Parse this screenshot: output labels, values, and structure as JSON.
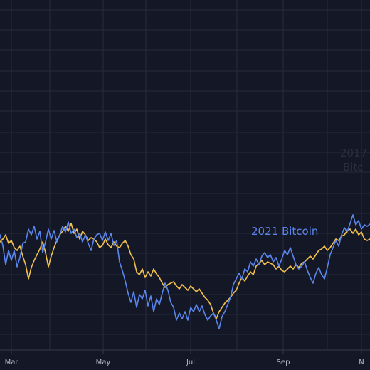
{
  "chart_data": {
    "type": "line",
    "title": "",
    "xlabel": "",
    "ylabel": "",
    "grid": true,
    "x_ticks": [
      "Mar",
      "May",
      "Jul",
      "Sep",
      "N"
    ],
    "x_range": [
      0,
      1
    ],
    "y_range": [
      0,
      1
    ],
    "colors": {
      "background": "#141826",
      "grid": "#262b3b",
      "axis": "#353a4b",
      "series_2021": "#5b86ee",
      "series_other": "#f2c14e",
      "faint_label": "#2a2f40"
    },
    "annotations": [
      {
        "text": "2021 Bitcoin",
        "color": "#5b86ee"
      },
      {
        "text": "2017",
        "color": "#2a2f40"
      },
      {
        "text": "Bitc",
        "color": "#2a2f40"
      }
    ],
    "series": [
      {
        "name": "2021 Bitcoin",
        "color": "#5b86ee",
        "points": [
          [
            0,
            330
          ],
          [
            4,
            345
          ],
          [
            8,
            372
          ],
          [
            12,
            352
          ],
          [
            16,
            366
          ],
          [
            20,
            352
          ],
          [
            24,
            375
          ],
          [
            28,
            362
          ],
          [
            32,
            342
          ],
          [
            36,
            340
          ],
          [
            40,
            322
          ],
          [
            44,
            330
          ],
          [
            48,
            318
          ],
          [
            52,
            336
          ],
          [
            56,
            325
          ],
          [
            60,
            355
          ],
          [
            64,
            340
          ],
          [
            68,
            322
          ],
          [
            72,
            336
          ],
          [
            76,
            324
          ],
          [
            80,
            340
          ],
          [
            84,
            330
          ],
          [
            88,
            318
          ],
          [
            92,
            326
          ],
          [
            96,
            312
          ],
          [
            100,
            328
          ],
          [
            104,
            322
          ],
          [
            108,
            334
          ],
          [
            112,
            328
          ],
          [
            116,
            340
          ],
          [
            120,
            330
          ],
          [
            124,
            342
          ],
          [
            128,
            352
          ],
          [
            132,
            336
          ],
          [
            136,
            330
          ],
          [
            140,
            328
          ],
          [
            144,
            338
          ],
          [
            148,
            326
          ],
          [
            152,
            338
          ],
          [
            156,
            328
          ],
          [
            160,
            345
          ],
          [
            164,
            338
          ],
          [
            168,
            368
          ],
          [
            172,
            380
          ],
          [
            176,
            395
          ],
          [
            180,
            412
          ],
          [
            184,
            425
          ],
          [
            188,
            410
          ],
          [
            192,
            432
          ],
          [
            196,
            414
          ],
          [
            200,
            420
          ],
          [
            204,
            408
          ],
          [
            208,
            430
          ],
          [
            212,
            416
          ],
          [
            216,
            438
          ],
          [
            220,
            420
          ],
          [
            224,
            428
          ],
          [
            228,
            412
          ],
          [
            232,
            398
          ],
          [
            236,
            408
          ],
          [
            240,
            425
          ],
          [
            244,
            432
          ],
          [
            248,
            450
          ],
          [
            252,
            440
          ],
          [
            256,
            448
          ],
          [
            260,
            438
          ],
          [
            264,
            450
          ],
          [
            268,
            432
          ],
          [
            272,
            438
          ],
          [
            276,
            428
          ],
          [
            280,
            438
          ],
          [
            284,
            430
          ],
          [
            288,
            442
          ],
          [
            292,
            450
          ],
          [
            296,
            444
          ],
          [
            300,
            440
          ],
          [
            304,
            450
          ],
          [
            308,
            462
          ],
          [
            312,
            445
          ],
          [
            316,
            438
          ],
          [
            320,
            428
          ],
          [
            324,
            418
          ],
          [
            328,
            400
          ],
          [
            332,
            392
          ],
          [
            336,
            384
          ],
          [
            340,
            392
          ],
          [
            344,
            378
          ],
          [
            348,
            382
          ],
          [
            352,
            368
          ],
          [
            356,
            374
          ],
          [
            360,
            364
          ],
          [
            364,
            372
          ],
          [
            368,
            360
          ],
          [
            372,
            355
          ],
          [
            376,
            362
          ],
          [
            380,
            358
          ],
          [
            384,
            368
          ],
          [
            388,
            362
          ],
          [
            392,
            374
          ],
          [
            396,
            364
          ],
          [
            400,
            352
          ],
          [
            404,
            358
          ],
          [
            408,
            348
          ],
          [
            412,
            360
          ],
          [
            416,
            372
          ],
          [
            420,
            378
          ],
          [
            424,
            374
          ],
          [
            428,
            368
          ],
          [
            432,
            380
          ],
          [
            436,
            390
          ],
          [
            440,
            398
          ],
          [
            444,
            384
          ],
          [
            448,
            376
          ],
          [
            452,
            386
          ],
          [
            456,
            392
          ],
          [
            460,
            376
          ],
          [
            464,
            358
          ],
          [
            468,
            348
          ],
          [
            472,
            338
          ],
          [
            476,
            346
          ],
          [
            480,
            330
          ],
          [
            484,
            320
          ],
          [
            488,
            326
          ],
          [
            492,
            314
          ],
          [
            496,
            302
          ],
          [
            500,
            316
          ],
          [
            504,
            310
          ],
          [
            508,
            322
          ],
          [
            512,
            316
          ],
          [
            516,
            318
          ],
          [
            520,
            315
          ]
        ]
      },
      {
        "name": "",
        "color": "#f2c14e",
        "points": [
          [
            0,
            340
          ],
          [
            4,
            336
          ],
          [
            8,
            330
          ],
          [
            12,
            342
          ],
          [
            16,
            338
          ],
          [
            20,
            348
          ],
          [
            24,
            352
          ],
          [
            28,
            346
          ],
          [
            32,
            360
          ],
          [
            36,
            372
          ],
          [
            40,
            392
          ],
          [
            44,
            376
          ],
          [
            48,
            366
          ],
          [
            52,
            358
          ],
          [
            56,
            350
          ],
          [
            60,
            340
          ],
          [
            64,
            355
          ],
          [
            68,
            375
          ],
          [
            72,
            360
          ],
          [
            76,
            348
          ],
          [
            80,
            338
          ],
          [
            84,
            330
          ],
          [
            88,
            325
          ],
          [
            92,
            318
          ],
          [
            96,
            325
          ],
          [
            100,
            314
          ],
          [
            104,
            328
          ],
          [
            108,
            322
          ],
          [
            112,
            336
          ],
          [
            116,
            325
          ],
          [
            120,
            330
          ],
          [
            124,
            338
          ],
          [
            128,
            334
          ],
          [
            132,
            336
          ],
          [
            136,
            340
          ],
          [
            140,
            348
          ],
          [
            144,
            345
          ],
          [
            148,
            336
          ],
          [
            152,
            344
          ],
          [
            156,
            348
          ],
          [
            160,
            340
          ],
          [
            164,
            346
          ],
          [
            168,
            348
          ],
          [
            172,
            342
          ],
          [
            176,
            338
          ],
          [
            180,
            346
          ],
          [
            184,
            358
          ],
          [
            188,
            364
          ],
          [
            192,
            382
          ],
          [
            196,
            386
          ],
          [
            200,
            378
          ],
          [
            204,
            390
          ],
          [
            208,
            382
          ],
          [
            212,
            388
          ],
          [
            216,
            378
          ],
          [
            220,
            385
          ],
          [
            224,
            390
          ],
          [
            228,
            398
          ],
          [
            232,
            404
          ],
          [
            236,
            400
          ],
          [
            240,
            398
          ],
          [
            244,
            396
          ],
          [
            248,
            402
          ],
          [
            252,
            406
          ],
          [
            256,
            400
          ],
          [
            260,
            404
          ],
          [
            264,
            408
          ],
          [
            268,
            402
          ],
          [
            272,
            406
          ],
          [
            276,
            410
          ],
          [
            280,
            406
          ],
          [
            284,
            412
          ],
          [
            288,
            418
          ],
          [
            292,
            422
          ],
          [
            296,
            428
          ],
          [
            300,
            440
          ],
          [
            304,
            448
          ],
          [
            308,
            438
          ],
          [
            312,
            432
          ],
          [
            316,
            426
          ],
          [
            320,
            422
          ],
          [
            324,
            418
          ],
          [
            328,
            412
          ],
          [
            332,
            408
          ],
          [
            336,
            398
          ],
          [
            340,
            390
          ],
          [
            344,
            395
          ],
          [
            348,
            388
          ],
          [
            352,
            382
          ],
          [
            356,
            386
          ],
          [
            360,
            374
          ],
          [
            364,
            370
          ],
          [
            368,
            366
          ],
          [
            372,
            372
          ],
          [
            376,
            368
          ],
          [
            380,
            370
          ],
          [
            384,
            372
          ],
          [
            388,
            378
          ],
          [
            392,
            374
          ],
          [
            396,
            380
          ],
          [
            400,
            382
          ],
          [
            404,
            378
          ],
          [
            408,
            374
          ],
          [
            412,
            378
          ],
          [
            416,
            372
          ],
          [
            420,
            376
          ],
          [
            424,
            370
          ],
          [
            428,
            368
          ],
          [
            432,
            364
          ],
          [
            436,
            360
          ],
          [
            440,
            364
          ],
          [
            444,
            358
          ],
          [
            448,
            352
          ],
          [
            452,
            350
          ],
          [
            456,
            346
          ],
          [
            460,
            352
          ],
          [
            464,
            348
          ],
          [
            468,
            342
          ],
          [
            472,
            336
          ],
          [
            476,
            338
          ],
          [
            480,
            332
          ],
          [
            484,
            330
          ],
          [
            488,
            324
          ],
          [
            492,
            322
          ],
          [
            496,
            328
          ],
          [
            500,
            322
          ],
          [
            504,
            330
          ],
          [
            508,
            326
          ],
          [
            512,
            336
          ],
          [
            516,
            338
          ],
          [
            520,
            336
          ]
        ]
      }
    ]
  }
}
